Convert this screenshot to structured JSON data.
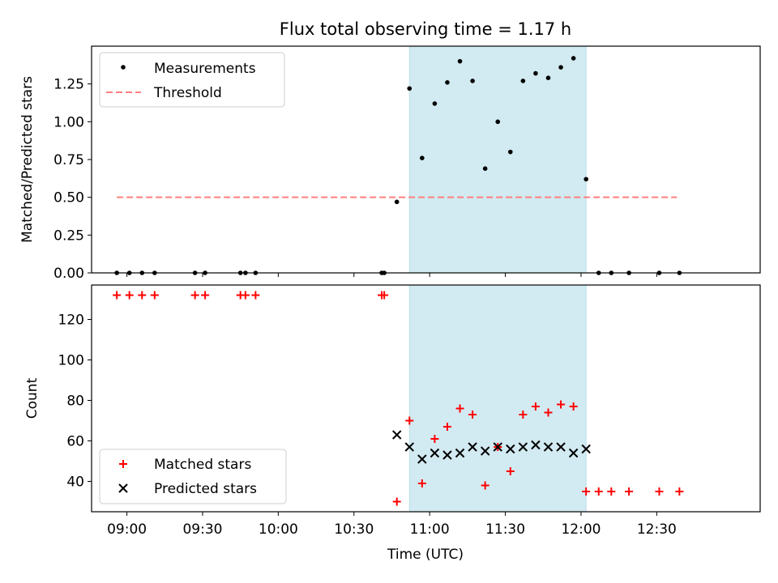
{
  "chart_data": [
    {
      "type": "scatter",
      "title": "Flux total observing time = 1.17 h",
      "xlabel": "",
      "ylabel": "Matched/Predicted stars",
      "ylim": [
        0.0,
        1.5
      ],
      "yticks": [
        0.0,
        0.25,
        0.5,
        0.75,
        1.0,
        1.25
      ],
      "ytick_labels": [
        "0.00",
        "0.25",
        "0.50",
        "0.75",
        "1.00",
        "1.25"
      ],
      "legend_position": "upper left",
      "shaded_span": {
        "start": "10:52",
        "end": "12:02",
        "color": "#add8e6"
      },
      "threshold": {
        "name": "Threshold",
        "value": 0.5,
        "x_start": "08:56",
        "x_end": "12:38",
        "color": "#ff7f7f",
        "style": "dashed"
      },
      "series": [
        {
          "name": "Measurements",
          "marker": "dot",
          "color": "#000000",
          "x": [
            "08:56",
            "09:01",
            "09:06",
            "09:11",
            "09:27",
            "09:31",
            "09:45",
            "09:47",
            "09:51",
            "10:41",
            "10:42",
            "10:47",
            "10:52",
            "10:57",
            "11:02",
            "11:07",
            "11:12",
            "11:17",
            "11:22",
            "11:27",
            "11:32",
            "11:37",
            "11:42",
            "11:47",
            "11:52",
            "11:57",
            "12:02",
            "12:07",
            "12:12",
            "12:19",
            "12:31",
            "12:39"
          ],
          "y": [
            0,
            0,
            0,
            0,
            0,
            0,
            0,
            0,
            0,
            0,
            0,
            0.47,
            1.22,
            0.76,
            1.12,
            1.26,
            1.4,
            1.27,
            0.69,
            1.0,
            0.8,
            1.27,
            1.32,
            1.29,
            1.36,
            1.42,
            0.62,
            0,
            0,
            0,
            0,
            0
          ]
        }
      ]
    },
    {
      "type": "scatter",
      "title": "",
      "xlabel": "Time (UTC)",
      "ylabel": "Count",
      "ylim": [
        25,
        137
      ],
      "yticks": [
        40,
        60,
        80,
        100,
        120
      ],
      "ytick_labels": [
        "40",
        "60",
        "80",
        "100",
        "120"
      ],
      "xticks": [
        "09:00",
        "09:30",
        "10:00",
        "10:30",
        "11:00",
        "11:30",
        "12:00",
        "12:30"
      ],
      "xlim": [
        "08:46",
        "13:11"
      ],
      "legend_position": "lower left",
      "shaded_span": {
        "start": "10:52",
        "end": "12:02",
        "color": "#add8e6"
      },
      "series": [
        {
          "name": "Matched stars",
          "marker": "plus",
          "color": "#ff0000",
          "x": [
            "08:56",
            "09:01",
            "09:06",
            "09:11",
            "09:27",
            "09:31",
            "09:45",
            "09:47",
            "09:51",
            "10:41",
            "10:42",
            "10:47",
            "10:52",
            "10:57",
            "11:02",
            "11:07",
            "11:12",
            "11:17",
            "11:22",
            "11:27",
            "11:32",
            "11:37",
            "11:42",
            "11:47",
            "11:52",
            "11:57",
            "12:02",
            "12:07",
            "12:12",
            "12:19",
            "12:31",
            "12:39"
          ],
          "y": [
            132,
            132,
            132,
            132,
            132,
            132,
            132,
            132,
            132,
            132,
            132,
            30,
            70,
            39,
            61,
            67,
            76,
            73,
            38,
            57,
            45,
            73,
            77,
            74,
            78,
            77,
            35,
            35,
            35,
            35,
            35,
            35
          ]
        },
        {
          "name": "Predicted stars",
          "marker": "x",
          "color": "#000000",
          "x": [
            "10:47",
            "10:52",
            "10:57",
            "11:02",
            "11:07",
            "11:12",
            "11:17",
            "11:22",
            "11:27",
            "11:32",
            "11:37",
            "11:42",
            "11:47",
            "11:52",
            "11:57",
            "12:02"
          ],
          "y": [
            63,
            57,
            51,
            54,
            53,
            54,
            57,
            55,
            57,
            56,
            57,
            58,
            57,
            57,
            54,
            56
          ]
        }
      ]
    }
  ]
}
